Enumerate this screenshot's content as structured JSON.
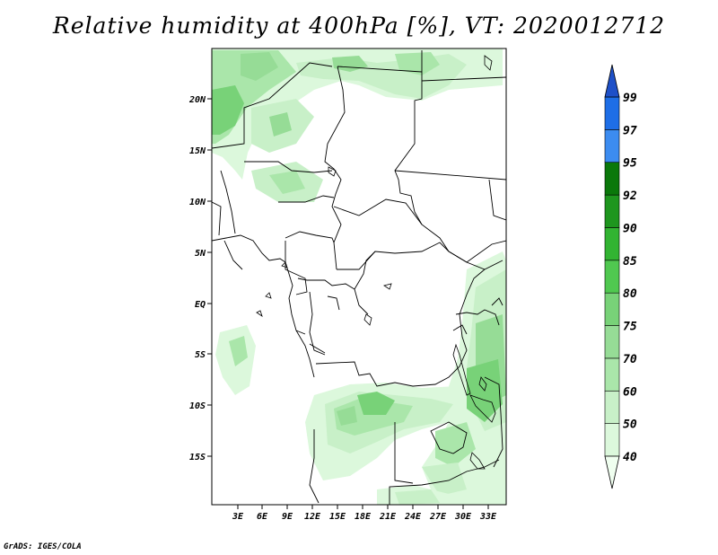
{
  "title": "Relative humidity at 400hPa [%], VT: 2020012712",
  "credit": "GrADS: IGES/COLA",
  "map": {
    "region": "Central Africa",
    "lat_labels": [
      "20N",
      "15N",
      "10N",
      "5N",
      "EQ",
      "5S",
      "10S",
      "15S"
    ],
    "lon_labels": [
      "3E",
      "6E",
      "9E",
      "12E",
      "15E",
      "18E",
      "21E",
      "24E",
      "27E",
      "30E",
      "33E"
    ]
  },
  "colorbar": {
    "levels": [
      "40",
      "50",
      "60",
      "70",
      "75",
      "80",
      "85",
      "90",
      "92",
      "95",
      "97",
      "99"
    ],
    "colors": [
      "#f0fff0",
      "#dcf8dc",
      "#c8f0c8",
      "#aae6aa",
      "#96dc96",
      "#78d278",
      "#50c850",
      "#32b432",
      "#1e961e",
      "#0a780a",
      "#3c8cf0",
      "#1e6ee6",
      "#1e50c8"
    ]
  }
}
